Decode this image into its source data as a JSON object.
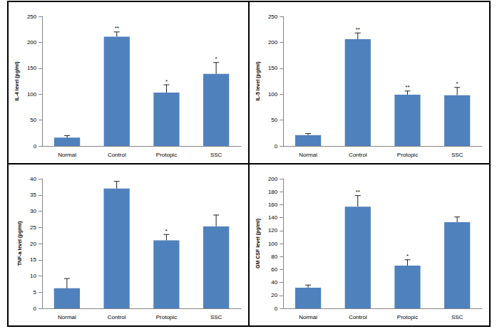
{
  "chart_data": [
    {
      "type": "bar",
      "y_label": "IL-4 level (pg/ml)",
      "categories": [
        "Normal",
        "Control",
        "Protopic",
        "SSC"
      ],
      "values": [
        16,
        211,
        103,
        139
      ],
      "errors": [
        4,
        9,
        15,
        22
      ],
      "annotations": [
        {
          "category": "Control",
          "text": "**"
        },
        {
          "category": "Protopic",
          "text": "*"
        },
        {
          "category": "SSC",
          "text": "*"
        }
      ],
      "color": "#4f81bd",
      "ylim": [
        0,
        250
      ],
      "yticks": [
        0,
        50,
        100,
        150,
        200,
        250
      ],
      "grid": false
    },
    {
      "type": "bar",
      "y_label": "IL-5 level (pg/ml)",
      "categories": [
        "Normal",
        "Control",
        "Protopic",
        "SSC"
      ],
      "values": [
        21,
        206,
        99,
        98
      ],
      "errors": [
        3,
        12,
        7,
        15
      ],
      "annotations": [
        {
          "category": "Control",
          "text": "**"
        },
        {
          "category": "Protopic",
          "text": "**"
        },
        {
          "category": "SSC",
          "text": "*"
        }
      ],
      "color": "#4f81bd",
      "ylim": [
        0,
        250
      ],
      "yticks": [
        0,
        50,
        100,
        150,
        200,
        250
      ],
      "grid": false
    },
    {
      "type": "bar",
      "y_label": "TNF-a level (pg/ml)",
      "categories": [
        "Normal",
        "Control",
        "Protopic",
        "SSC"
      ],
      "values": [
        6.2,
        37,
        21,
        25.3
      ],
      "errors": [
        3,
        2.2,
        1.8,
        3.5
      ],
      "annotations": [
        {
          "category": "Control",
          "text": "**"
        },
        {
          "category": "Protopic",
          "text": "*"
        }
      ],
      "color": "#4f81bd",
      "ylim": [
        0,
        40
      ],
      "yticks": [
        0,
        5,
        10,
        15,
        20,
        25,
        30,
        35,
        40
      ],
      "grid": false
    },
    {
      "type": "bar",
      "y_label": "GM CSF level (pg/ml)",
      "categories": [
        "Normal",
        "Control",
        "Protopic",
        "SSC"
      ],
      "values": [
        32,
        157,
        66,
        133
      ],
      "errors": [
        4,
        17,
        9,
        8
      ],
      "annotations": [
        {
          "category": "Control",
          "text": "**"
        },
        {
          "category": "Protopic",
          "text": "*"
        }
      ],
      "color": "#4f81bd",
      "ylim": [
        0,
        200
      ],
      "yticks": [
        0,
        20,
        40,
        60,
        80,
        100,
        120,
        140,
        160,
        180,
        200
      ],
      "grid": false
    }
  ]
}
